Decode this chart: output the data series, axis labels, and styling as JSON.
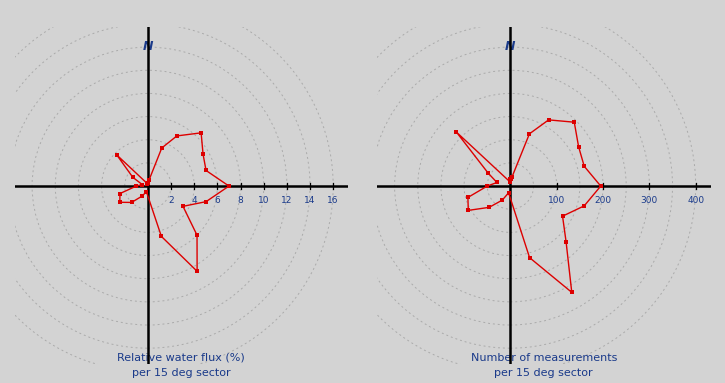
{
  "title1": "Relative water flux (%)\nper 15 deg sector",
  "title2": "Number of measurements\nper 15 deg sector",
  "bg_color": "#d3d3d3",
  "line_color": "#dd0000",
  "axis_color": "#000000",
  "label_color": "#1a3a8a",
  "grid_color": "#aaaaaa",
  "flux_angles_deg": [
    350,
    355,
    5,
    10,
    20,
    30,
    45,
    60,
    75,
    90,
    105,
    120,
    135,
    150,
    165,
    195,
    210,
    225,
    240,
    255,
    270,
    285,
    300,
    315
  ],
  "flux_values": [
    0.2,
    0.3,
    0.3,
    0.5,
    3.5,
    5.0,
    6.5,
    5.5,
    5.2,
    7.0,
    5.2,
    3.5,
    6.0,
    8.5,
    4.5,
    0.5,
    1.0,
    2.0,
    2.8,
    2.5,
    1.0,
    0.5,
    1.5,
    3.8
  ],
  "flux_max": 16,
  "flux_ticks": [
    2,
    4,
    6,
    8,
    10,
    12,
    14,
    16
  ],
  "flux_circles": [
    2,
    4,
    6,
    8,
    10,
    12,
    14,
    16
  ],
  "meas_angles_deg": [
    350,
    355,
    5,
    10,
    20,
    30,
    45,
    60,
    75,
    90,
    105,
    120,
    135,
    150,
    165,
    195,
    210,
    225,
    240,
    255,
    270,
    285,
    300,
    315
  ],
  "meas_values": [
    10,
    15,
    15,
    20,
    120,
    165,
    195,
    170,
    165,
    195,
    165,
    130,
    170,
    265,
    160,
    15,
    35,
    65,
    105,
    95,
    50,
    30,
    55,
    165
  ],
  "meas_max": 400,
  "meas_ticks": [
    100,
    200,
    300,
    400
  ],
  "meas_circles": [
    50,
    100,
    150,
    200,
    250,
    300,
    350,
    400
  ]
}
